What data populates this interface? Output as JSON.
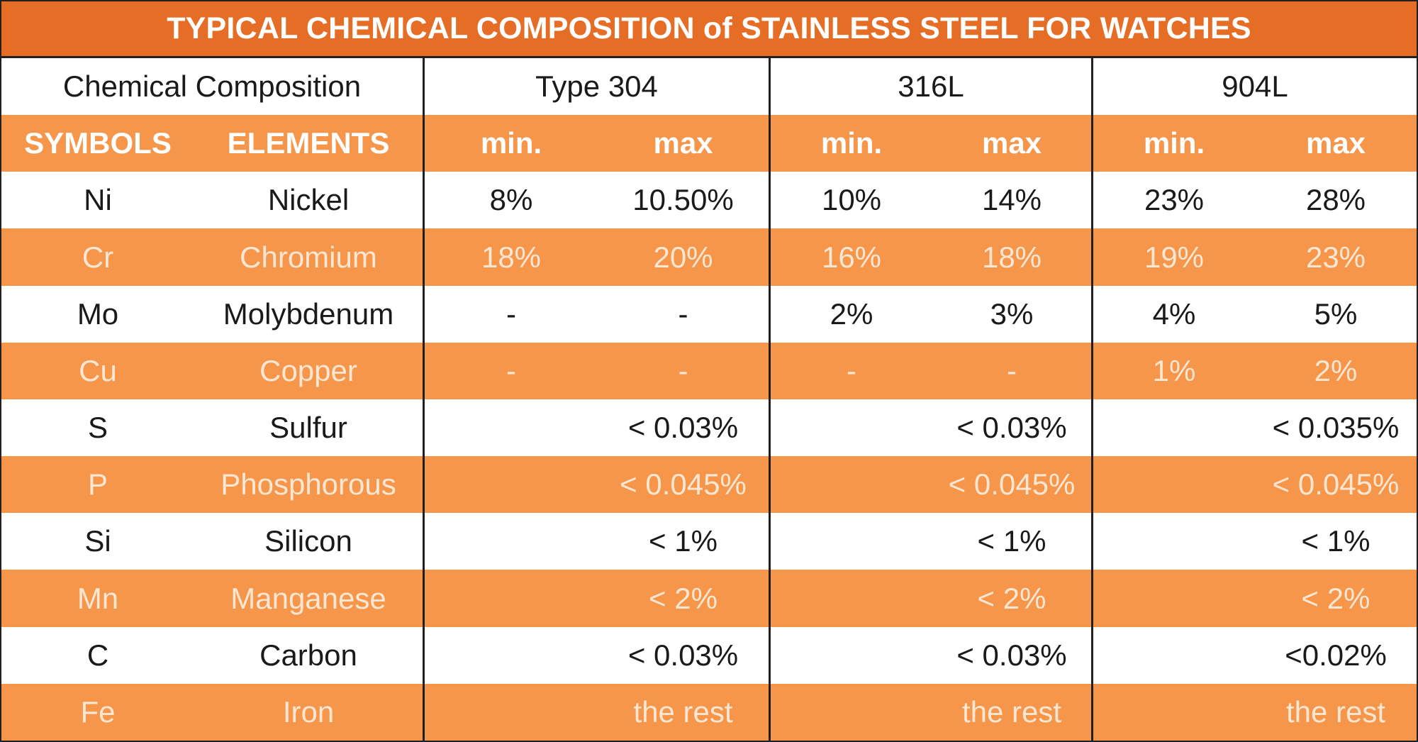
{
  "title": "TYPICAL CHEMICAL COMPOSITION of STAINLESS STEEL FOR WATCHES",
  "header": {
    "first": "Chemical Composition",
    "groups": [
      "Type 304",
      "316L",
      "904L"
    ]
  },
  "subheader": [
    "SYMBOLS",
    "ELEMENTS",
    "min.",
    "max",
    "min.",
    "max",
    "min.",
    "max"
  ],
  "colors": {
    "title_bg": "#e56d26",
    "orange_row": "#f5964b",
    "white_row": "#ffffff",
    "orange_text": "#fde7d3",
    "border": "#231f20"
  },
  "rows": [
    {
      "symbol": "Ni",
      "element": "Nickel",
      "t304_min": "8%",
      "t304_max": "10.50%",
      "l316_min": "10%",
      "l316_max": "14%",
      "l904_min": "23%",
      "l904_max": "28%"
    },
    {
      "symbol": "Cr",
      "element": "Chromium",
      "t304_min": "18%",
      "t304_max": "20%",
      "l316_min": "16%",
      "l316_max": "18%",
      "l904_min": "19%",
      "l904_max": "23%"
    },
    {
      "symbol": "Mo",
      "element": "Molybdenum",
      "t304_min": "-",
      "t304_max": "-",
      "l316_min": "2%",
      "l316_max": "3%",
      "l904_min": "4%",
      "l904_max": "5%"
    },
    {
      "symbol": "Cu",
      "element": "Copper",
      "t304_min": "-",
      "t304_max": "-",
      "l316_min": "-",
      "l316_max": "-",
      "l904_min": "1%",
      "l904_max": "2%"
    },
    {
      "symbol": "S",
      "element": "Sulfur",
      "t304_min": "",
      "t304_max": "< 0.03%",
      "l316_min": "",
      "l316_max": "< 0.03%",
      "l904_min": "",
      "l904_max": "< 0.035%"
    },
    {
      "symbol": "P",
      "element": "Phosphorous",
      "t304_min": "",
      "t304_max": "< 0.045%",
      "l316_min": "",
      "l316_max": "< 0.045%",
      "l904_min": "",
      "l904_max": "< 0.045%"
    },
    {
      "symbol": "Si",
      "element": "Silicon",
      "t304_min": "",
      "t304_max": "< 1%",
      "l316_min": "",
      "l316_max": "< 1%",
      "l904_min": "",
      "l904_max": "< 1%"
    },
    {
      "symbol": "Mn",
      "element": "Manganese",
      "t304_min": "",
      "t304_max": "< 2%",
      "l316_min": "",
      "l316_max": "< 2%",
      "l904_min": "",
      "l904_max": "< 2%"
    },
    {
      "symbol": "C",
      "element": "Carbon",
      "t304_min": "",
      "t304_max": "< 0.03%",
      "l316_min": "",
      "l316_max": "< 0.03%",
      "l904_min": "",
      "l904_max": "<0.02%"
    },
    {
      "symbol": "Fe",
      "element": "Iron",
      "t304_min": "",
      "t304_max": "the rest",
      "l316_min": "",
      "l316_max": "the rest",
      "l904_min": "",
      "l904_max": "the rest"
    }
  ],
  "chart_data": {
    "type": "table",
    "title": "TYPICAL CHEMICAL COMPOSITION of STAINLESS STEEL FOR WATCHES",
    "columns": [
      "SYMBOLS",
      "ELEMENTS",
      "Type 304 min.",
      "Type 304 max",
      "316L min.",
      "316L max",
      "904L min.",
      "904L max"
    ],
    "rows": [
      [
        "Ni",
        "Nickel",
        "8%",
        "10.50%",
        "10%",
        "14%",
        "23%",
        "28%"
      ],
      [
        "Cr",
        "Chromium",
        "18%",
        "20%",
        "16%",
        "18%",
        "19%",
        "23%"
      ],
      [
        "Mo",
        "Molybdenum",
        "-",
        "-",
        "2%",
        "3%",
        "4%",
        "5%"
      ],
      [
        "Cu",
        "Copper",
        "-",
        "-",
        "-",
        "-",
        "1%",
        "2%"
      ],
      [
        "S",
        "Sulfur",
        "",
        "< 0.03%",
        "",
        "< 0.03%",
        "",
        "< 0.035%"
      ],
      [
        "P",
        "Phosphorous",
        "",
        "< 0.045%",
        "",
        "< 0.045%",
        "",
        "< 0.045%"
      ],
      [
        "Si",
        "Silicon",
        "",
        "< 1%",
        "",
        "< 1%",
        "",
        "< 1%"
      ],
      [
        "Mn",
        "Manganese",
        "",
        "< 2%",
        "",
        "< 2%",
        "",
        "< 2%"
      ],
      [
        "C",
        "Carbon",
        "",
        "< 0.03%",
        "",
        "< 0.03%",
        "",
        "<0.02%"
      ],
      [
        "Fe",
        "Iron",
        "",
        "the rest",
        "",
        "the rest",
        "",
        "the rest"
      ]
    ]
  }
}
